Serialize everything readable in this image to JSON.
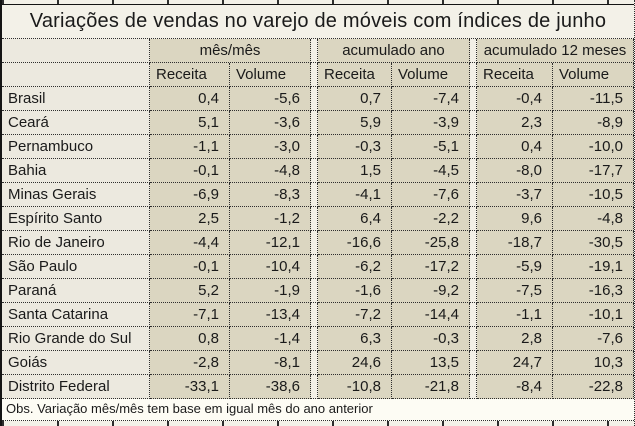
{
  "title": "Variações de vendas no varejo de móveis com índices de junho",
  "footnote": "Obs. Variação mês/mês tem base em igual mês do ano anterior",
  "table": {
    "corner_label": "",
    "groups": [
      "mês/mês",
      "acumulado ano",
      "acumulado 12 meses"
    ],
    "col_headers": [
      "Receita",
      "Volume",
      "Receita",
      "Volume",
      "Receita",
      "Volume"
    ],
    "rows": [
      {
        "name": "Brasil",
        "values": [
          "0,4",
          "-5,6",
          "0,7",
          "-7,4",
          "-0,4",
          "-11,5"
        ]
      },
      {
        "name": "Ceará",
        "values": [
          "5,1",
          "-3,6",
          "5,9",
          "-3,9",
          "2,3",
          "-8,9"
        ]
      },
      {
        "name": "Pernambuco",
        "values": [
          "-1,1",
          "-3,0",
          "-0,3",
          "-5,1",
          "0,4",
          "-10,0"
        ]
      },
      {
        "name": "Bahia",
        "values": [
          "-0,1",
          "-4,8",
          "1,5",
          "-4,5",
          "-8,0",
          "-17,7"
        ]
      },
      {
        "name": "Minas Gerais",
        "values": [
          "-6,9",
          "-8,3",
          "-4,1",
          "-7,6",
          "-3,7",
          "-10,5"
        ]
      },
      {
        "name": "Espírito Santo",
        "values": [
          "2,5",
          "-1,2",
          "6,4",
          "-2,2",
          "9,6",
          "-4,8"
        ]
      },
      {
        "name": "Rio de Janeiro",
        "values": [
          "-4,4",
          "-12,1",
          "-16,6",
          "-25,8",
          "-18,7",
          "-30,5"
        ]
      },
      {
        "name": "São Paulo",
        "values": [
          "-0,1",
          "-10,4",
          "-6,2",
          "-17,2",
          "-5,9",
          "-19,1"
        ]
      },
      {
        "name": "Paraná",
        "values": [
          "5,2",
          "-1,9",
          "-1,6",
          "-9,2",
          "-7,5",
          "-16,3"
        ]
      },
      {
        "name": "Santa Catarina",
        "values": [
          "-7,1",
          "-13,4",
          "-7,2",
          "-14,4",
          "-1,1",
          "-10,1"
        ]
      },
      {
        "name": "Rio Grande do Sul",
        "values": [
          "0,8",
          "-1,4",
          "6,3",
          "-0,3",
          "2,8",
          "-7,6"
        ]
      },
      {
        "name": "Goiás",
        "values": [
          "-2,8",
          "-8,1",
          "24,6",
          "13,5",
          "24,7",
          "10,3"
        ]
      },
      {
        "name": "Distrito Federal",
        "values": [
          "-33,1",
          "-38,6",
          "-10,8",
          "-21,8",
          "-8,4",
          "-22,8"
        ]
      }
    ]
  },
  "chart_data": {
    "type": "table",
    "title": "Variações de vendas no varejo de móveis com índices de junho",
    "column_groups": [
      "mês/mês",
      "acumulado ano",
      "acumulado 12 meses"
    ],
    "columns": [
      "mês/mês Receita",
      "mês/mês Volume",
      "acumulado ano Receita",
      "acumulado ano Volume",
      "acumulado 12 meses Receita",
      "acumulado 12 meses Volume"
    ],
    "categories": [
      "Brasil",
      "Ceará",
      "Pernambuco",
      "Bahia",
      "Minas Gerais",
      "Espírito Santo",
      "Rio de Janeiro",
      "São Paulo",
      "Paraná",
      "Santa Catarina",
      "Rio Grande do Sul",
      "Goiás",
      "Distrito Federal"
    ],
    "series": [
      {
        "name": "mês/mês Receita",
        "values": [
          0.4,
          5.1,
          -1.1,
          -0.1,
          -6.9,
          2.5,
          -4.4,
          -0.1,
          5.2,
          -7.1,
          0.8,
          -2.8,
          -33.1
        ]
      },
      {
        "name": "mês/mês Volume",
        "values": [
          -5.6,
          -3.6,
          -3.0,
          -4.8,
          -8.3,
          -1.2,
          -12.1,
          -10.4,
          -1.9,
          -13.4,
          -1.4,
          -8.1,
          -38.6
        ]
      },
      {
        "name": "acumulado ano Receita",
        "values": [
          0.7,
          5.9,
          -0.3,
          1.5,
          -4.1,
          6.4,
          -16.6,
          -6.2,
          -1.6,
          -7.2,
          6.3,
          24.6,
          -10.8
        ]
      },
      {
        "name": "acumulado ano Volume",
        "values": [
          -7.4,
          -3.9,
          -5.1,
          -4.5,
          -7.6,
          -2.2,
          -25.8,
          -17.2,
          -9.2,
          -14.4,
          -0.3,
          13.5,
          -21.8
        ]
      },
      {
        "name": "acumulado 12 meses Receita",
        "values": [
          -0.4,
          2.3,
          0.4,
          -8.0,
          -3.7,
          9.6,
          -18.7,
          -5.9,
          -7.5,
          -1.1,
          2.8,
          24.7,
          -8.4
        ]
      },
      {
        "name": "acumulado 12 meses Volume",
        "values": [
          -11.5,
          -8.9,
          -10.0,
          -17.7,
          -10.5,
          -4.8,
          -30.5,
          -19.1,
          -16.3,
          -10.1,
          -7.6,
          10.3,
          -22.8
        ]
      }
    ],
    "footnote": "Obs. Variação mês/mês tem base em igual mês do ano anterior"
  },
  "colors": {
    "cell_tan": "#dbd6c1",
    "light_beige": "#ece9df",
    "spacer": "#f2efe6",
    "title_bg": "#f3f1e8",
    "footer_bg": "#fdfcf4",
    "border": "#2e2e2e",
    "text": "#1a1a1a"
  }
}
